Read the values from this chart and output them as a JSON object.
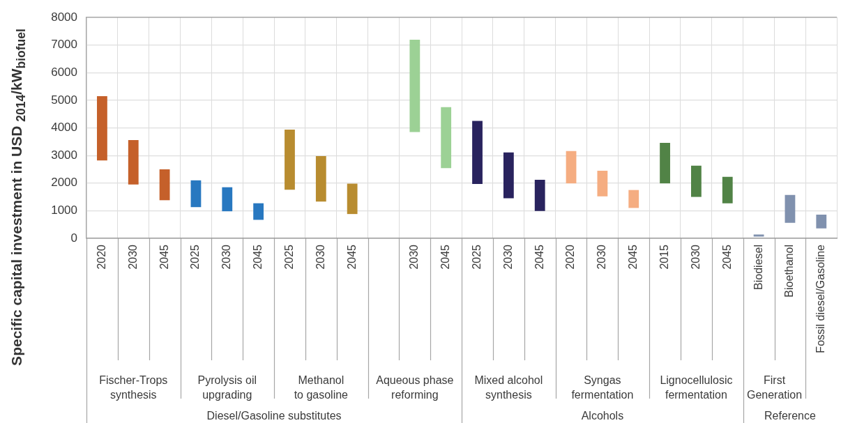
{
  "chart_data": {
    "type": "bar",
    "ylabel": "Specific capital investment in USD $_{2014}$/kW$_{biofuel}$",
    "categories": [
      "2020",
      "2030",
      "2045",
      "2025",
      "2030",
      "2045",
      "2025",
      "2030",
      "2045",
      null,
      "2030",
      "2045",
      "2025",
      "2030",
      "2045",
      "2020",
      "2030",
      "2045",
      "2015",
      "2030",
      "2045",
      "Biodiesel",
      "Bioethanol",
      "Fossil diesel/Gasoline"
    ],
    "base": [
      2820,
      1950,
      1380,
      1130,
      980,
      670,
      1760,
      1330,
      880,
      null,
      3850,
      2540,
      1970,
      1450,
      990,
      1990,
      1520,
      1100,
      1990,
      1500,
      1270,
      60,
      560,
      360
    ],
    "values": [
      2330,
      1610,
      1120,
      970,
      870,
      600,
      2180,
      1650,
      1100,
      null,
      3340,
      2210,
      2280,
      1660,
      1130,
      1170,
      930,
      650,
      1470,
      1130,
      960,
      80,
      1010,
      500
    ],
    "colors": [
      "#c5602a",
      "#c5602a",
      "#c5602a",
      "#2878c0",
      "#2878c0",
      "#2878c0",
      "#b88c30",
      "#b88c30",
      "#b88c30",
      null,
      "#9cd195",
      "#9cd195",
      "#29235e",
      "#29235e",
      "#29235e",
      "#f5ad81",
      "#f5ad81",
      "#f5ad81",
      "#518346",
      "#518346",
      "#518346",
      "#8091ae",
      "#8091ae",
      "#8091ae"
    ],
    "ylim": [
      0,
      8000
    ],
    "yticks": [
      0,
      1000,
      2000,
      3000,
      4000,
      5000,
      6000,
      7000,
      8000
    ],
    "grid": true,
    "annotations": [
      "Fischer-Trops\nsynthesis",
      "Pyrolysis oil\nupgrading",
      "Methanol\nto gasoline",
      "Aqueous phase\nreforming",
      "Mixed alcohol\nsynthesis",
      "Syngas\nfermentation",
      "Lignocellulosic\nfermentation",
      "First\nGeneration",
      "Diesel/Gasoline substitutes",
      "Alcohols",
      "Reference"
    ]
  }
}
